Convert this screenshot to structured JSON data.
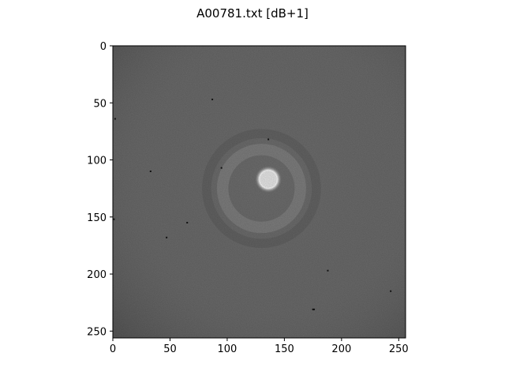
{
  "chart_data": {
    "type": "heatmap",
    "title": "A00781.txt [dB+1]",
    "xlabel": "",
    "ylabel": "",
    "xlim": [
      0,
      256
    ],
    "ylim": [
      256,
      0
    ],
    "x_ticks": [
      0,
      50,
      100,
      150,
      200,
      250
    ],
    "y_ticks": [
      0,
      50,
      100,
      150,
      200,
      250
    ],
    "colormap": "gray",
    "grid": false,
    "image_size": [
      256,
      256
    ],
    "background_level": 0.42,
    "features": [
      {
        "kind": "beam-spot",
        "cx": 136,
        "cy": 117,
        "r_core": 8,
        "r_halo": 12,
        "level": 0.97
      },
      {
        "kind": "scattering-ring",
        "cx": 130,
        "cy": 125,
        "r": 34,
        "width": 10,
        "level": 0.55
      },
      {
        "kind": "dark-band",
        "cx": 130,
        "cy": 125,
        "r": 48,
        "width": 8,
        "level": 0.36
      }
    ],
    "dark_pixels": [
      [
        87,
        47
      ],
      [
        2,
        64
      ],
      [
        136,
        82
      ],
      [
        33,
        110
      ],
      [
        95,
        107
      ],
      [
        65,
        155
      ],
      [
        47,
        168
      ],
      [
        1,
        152
      ],
      [
        188,
        197
      ],
      [
        176,
        231
      ],
      [
        175,
        231
      ],
      [
        243,
        215
      ]
    ]
  },
  "colors": {
    "background": "#ffffff",
    "axes": "#000000",
    "text": "#000000"
  }
}
